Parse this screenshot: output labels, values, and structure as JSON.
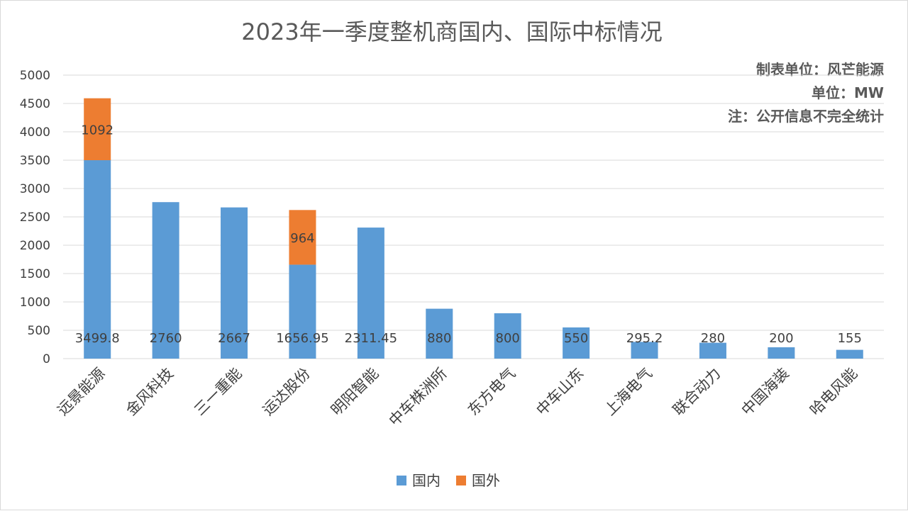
{
  "chart_data": {
    "type": "bar",
    "stacked": true,
    "title": "2023年一季度整机商国内、国际中标情况",
    "notes": [
      "制表单位：风芒能源",
      "单位：MW",
      "注：公开信息不完全统计"
    ],
    "categories": [
      "远景能源",
      "金风科技",
      "三一重能",
      "运达股份",
      "明阳智能",
      "中车株洲所",
      "东方电气",
      "中车山东",
      "上海电气",
      "联合动力",
      "中国海装",
      "哈电风能"
    ],
    "series": [
      {
        "name": "国内",
        "color": "#5b9bd5",
        "values": [
          3499.8,
          2760,
          2667,
          1656.95,
          2311.45,
          880,
          800,
          550,
          295.2,
          280,
          200,
          155
        ],
        "labels": [
          "3499.8",
          "2760",
          "2667",
          "1656.95",
          "2311.45",
          "880",
          "800",
          "550",
          "295.2",
          "280",
          "200",
          "155"
        ]
      },
      {
        "name": "国外",
        "color": "#ed7d31",
        "values": [
          1092,
          null,
          null,
          964,
          null,
          null,
          null,
          null,
          null,
          null,
          null,
          null
        ],
        "labels": [
          "1092",
          null,
          null,
          "964",
          null,
          null,
          null,
          null,
          null,
          null,
          null,
          null
        ]
      }
    ],
    "ylim": [
      0,
      5000
    ],
    "yticks": [
      0,
      500,
      1000,
      1500,
      2000,
      2500,
      3000,
      3500,
      4000,
      4500,
      5000
    ],
    "grid": true,
    "legend_position": "bottom"
  }
}
